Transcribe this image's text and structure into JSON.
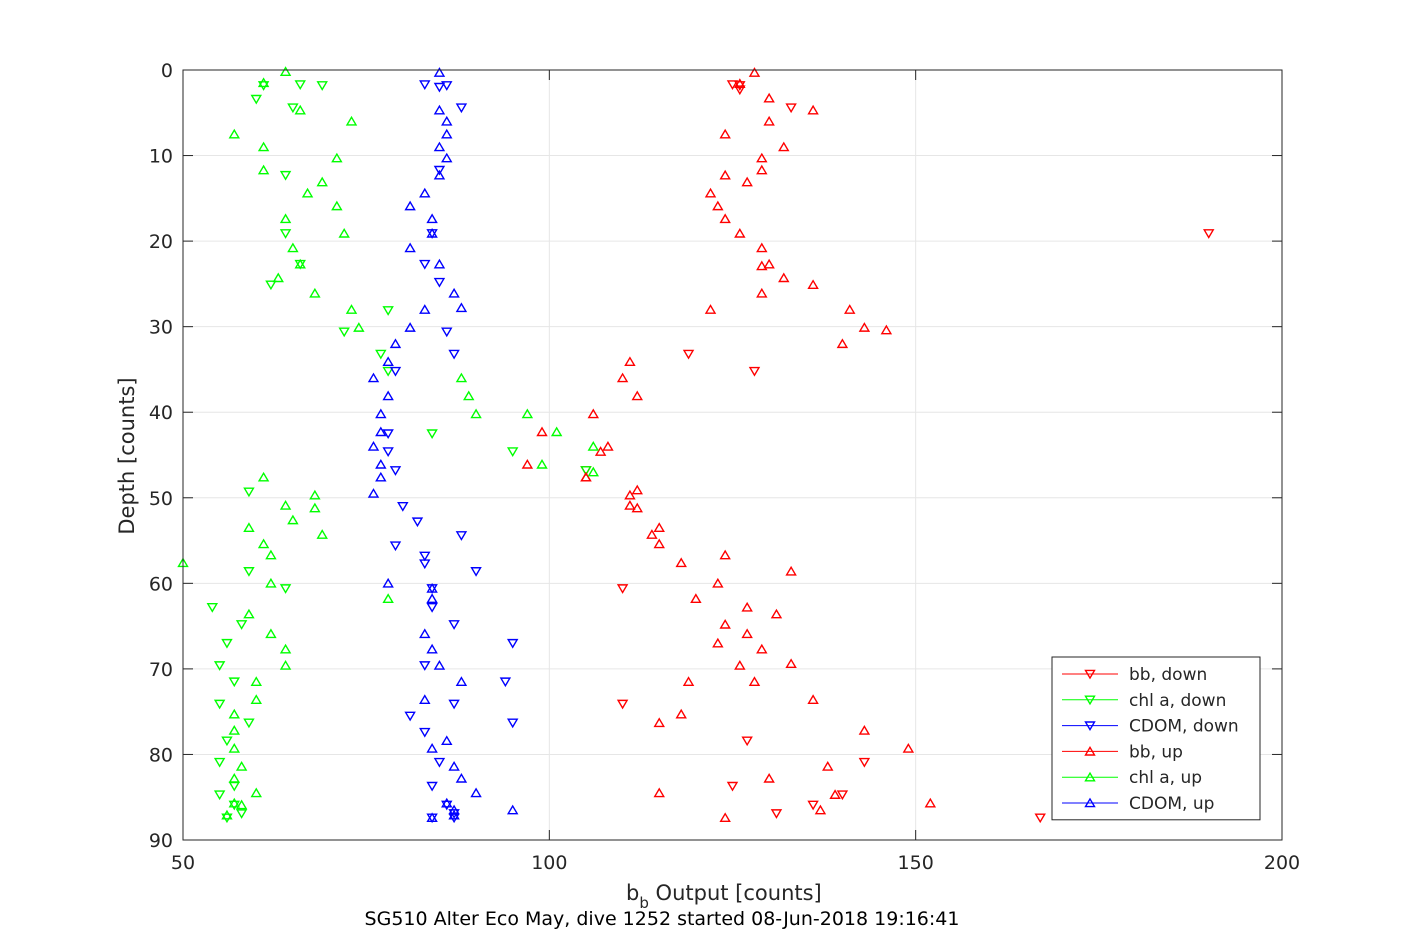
{
  "chart_data": {
    "type": "scatter",
    "xlabel_main": "b",
    "xlabel_sub": "b",
    "xlabel_rest": " Output [counts]",
    "ylabel": "Depth [counts]",
    "footer": "SG510 Alter Eco May, dive 1252 started 08-Jun-2018 19:16:41",
    "xlim": [
      50,
      200
    ],
    "ylim": [
      0,
      90
    ],
    "y_reversed": true,
    "grid": true,
    "legend_position": "bottom-right",
    "xticks": [
      50,
      100,
      150,
      200
    ],
    "yticks": [
      0,
      10,
      20,
      30,
      40,
      50,
      60,
      70,
      80,
      90
    ],
    "series": [
      {
        "name": "bb, down",
        "color": "#ff0000",
        "marker": "down",
        "points": [
          [
            125,
            1.7
          ],
          [
            126,
            1.8
          ],
          [
            126,
            2.3
          ],
          [
            133,
            4.4
          ],
          [
            128,
            35.2
          ],
          [
            119,
            33.2
          ],
          [
            190,
            19.1
          ],
          [
            105,
            46.8
          ],
          [
            110,
            60.6
          ],
          [
            110,
            74.1
          ],
          [
            127,
            78.4
          ],
          [
            125,
            83.7
          ],
          [
            131,
            86.9
          ],
          [
            136,
            85.9
          ],
          [
            167,
            87.4
          ],
          [
            140,
            84.7
          ],
          [
            143,
            80.9
          ]
        ]
      },
      {
        "name": "chl a, down",
        "color": "#00ff00",
        "marker": "down",
        "points": [
          [
            61,
            1.8
          ],
          [
            66,
            1.7
          ],
          [
            69,
            1.8
          ],
          [
            60,
            3.4
          ],
          [
            65,
            4.4
          ],
          [
            64,
            12.3
          ],
          [
            64,
            19.1
          ],
          [
            66,
            22.7
          ],
          [
            62,
            25.1
          ],
          [
            72,
            30.6
          ],
          [
            77,
            33.2
          ],
          [
            78,
            35.2
          ],
          [
            78,
            28.1
          ],
          [
            84,
            42.5
          ],
          [
            95,
            44.6
          ],
          [
            105,
            46.8
          ],
          [
            59,
            49.3
          ],
          [
            59,
            58.6
          ],
          [
            64,
            60.6
          ],
          [
            54,
            62.8
          ],
          [
            58,
            64.8
          ],
          [
            56,
            67.0
          ],
          [
            55,
            69.6
          ],
          [
            57,
            71.5
          ],
          [
            55,
            74.1
          ],
          [
            59,
            76.3
          ],
          [
            56,
            78.4
          ],
          [
            55,
            80.9
          ],
          [
            57,
            83.7
          ],
          [
            55,
            84.7
          ],
          [
            57,
            85.9
          ],
          [
            58,
            86.9
          ],
          [
            56,
            87.4
          ]
        ]
      },
      {
        "name": "CDOM, down",
        "color": "#0000ff",
        "marker": "down",
        "points": [
          [
            83,
            1.7
          ],
          [
            85,
            2.0
          ],
          [
            86,
            1.8
          ],
          [
            88,
            4.4
          ],
          [
            85,
            11.7
          ],
          [
            84,
            19.1
          ],
          [
            83,
            22.7
          ],
          [
            85,
            24.8
          ],
          [
            86,
            30.6
          ],
          [
            87,
            33.2
          ],
          [
            79,
            35.2
          ],
          [
            78,
            42.5
          ],
          [
            78,
            44.6
          ],
          [
            79,
            46.8
          ],
          [
            80,
            51.0
          ],
          [
            82,
            52.8
          ],
          [
            88,
            54.4
          ],
          [
            79,
            55.6
          ],
          [
            83,
            56.8
          ],
          [
            83,
            57.7
          ],
          [
            90,
            58.6
          ],
          [
            84,
            60.6
          ],
          [
            84,
            62.8
          ],
          [
            87,
            64.8
          ],
          [
            95,
            67.0
          ],
          [
            83,
            69.6
          ],
          [
            94,
            71.5
          ],
          [
            87,
            74.1
          ],
          [
            95,
            76.3
          ],
          [
            81,
            75.5
          ],
          [
            83,
            77.4
          ],
          [
            85,
            80.9
          ],
          [
            84,
            83.7
          ],
          [
            86,
            85.9
          ],
          [
            87,
            86.9
          ],
          [
            87,
            87.4
          ],
          [
            84,
            87.4
          ]
        ]
      },
      {
        "name": "bb, up",
        "color": "#ff0000",
        "marker": "up",
        "points": [
          [
            128,
            0.3
          ],
          [
            126,
            1.6
          ],
          [
            130,
            3.3
          ],
          [
            136,
            4.7
          ],
          [
            130,
            6.0
          ],
          [
            124,
            7.5
          ],
          [
            132,
            9.0
          ],
          [
            129,
            10.3
          ],
          [
            129,
            11.7
          ],
          [
            124,
            12.3
          ],
          [
            127,
            13.1
          ],
          [
            122,
            14.4
          ],
          [
            123,
            15.9
          ],
          [
            124,
            17.4
          ],
          [
            126,
            19.1
          ],
          [
            129,
            20.8
          ],
          [
            130,
            22.7
          ],
          [
            129,
            22.9
          ],
          [
            132,
            24.3
          ],
          [
            129,
            26.1
          ],
          [
            136,
            25.1
          ],
          [
            141,
            28.0
          ],
          [
            122,
            28.0
          ],
          [
            143,
            30.1
          ],
          [
            146,
            30.4
          ],
          [
            140,
            32.0
          ],
          [
            111,
            34.1
          ],
          [
            110,
            36.0
          ],
          [
            112,
            38.1
          ],
          [
            106,
            40.2
          ],
          [
            99,
            42.3
          ],
          [
            97,
            46.1
          ],
          [
            105,
            47.6
          ],
          [
            112,
            49.1
          ],
          [
            111,
            49.7
          ],
          [
            112,
            51.2
          ],
          [
            111,
            50.9
          ],
          [
            115,
            53.5
          ],
          [
            114,
            54.3
          ],
          [
            115,
            55.4
          ],
          [
            118,
            57.6
          ],
          [
            124,
            56.7
          ],
          [
            133,
            58.6
          ],
          [
            123,
            60.0
          ],
          [
            120,
            61.8
          ],
          [
            127,
            62.8
          ],
          [
            131,
            63.6
          ],
          [
            124,
            64.8
          ],
          [
            127,
            65.9
          ],
          [
            129,
            67.7
          ],
          [
            123,
            67.0
          ],
          [
            126,
            69.6
          ],
          [
            133,
            69.4
          ],
          [
            128,
            71.5
          ],
          [
            119,
            71.5
          ],
          [
            136,
            73.6
          ],
          [
            115,
            76.3
          ],
          [
            118,
            75.3
          ],
          [
            143,
            77.2
          ],
          [
            149,
            79.3
          ],
          [
            138,
            81.4
          ],
          [
            130,
            82.8
          ],
          [
            139,
            84.7
          ],
          [
            152,
            85.7
          ],
          [
            137,
            86.5
          ],
          [
            124,
            87.4
          ],
          [
            115,
            84.5
          ],
          [
            105,
            47.6
          ],
          [
            108,
            44.0
          ],
          [
            107,
            44.6
          ]
        ]
      },
      {
        "name": "chl a, up",
        "color": "#00ff00",
        "marker": "up",
        "points": [
          [
            64,
            0.2
          ],
          [
            61,
            1.5
          ],
          [
            66,
            4.7
          ],
          [
            73,
            6.0
          ],
          [
            57,
            7.5
          ],
          [
            61,
            9.0
          ],
          [
            71,
            10.3
          ],
          [
            61,
            11.7
          ],
          [
            69,
            13.1
          ],
          [
            67,
            14.4
          ],
          [
            71,
            15.9
          ],
          [
            64,
            17.4
          ],
          [
            72,
            19.1
          ],
          [
            65,
            20.8
          ],
          [
            66,
            22.7
          ],
          [
            63,
            24.3
          ],
          [
            68,
            26.1
          ],
          [
            73,
            28.0
          ],
          [
            74,
            30.1
          ],
          [
            88,
            36.0
          ],
          [
            89,
            38.1
          ],
          [
            90,
            40.2
          ],
          [
            97,
            40.2
          ],
          [
            101,
            42.3
          ],
          [
            106,
            44.0
          ],
          [
            99,
            46.1
          ],
          [
            106,
            47.0
          ],
          [
            61,
            47.6
          ],
          [
            68,
            49.7
          ],
          [
            64,
            50.9
          ],
          [
            68,
            51.2
          ],
          [
            65,
            52.6
          ],
          [
            59,
            53.5
          ],
          [
            69,
            54.3
          ],
          [
            61,
            55.4
          ],
          [
            62,
            56.7
          ],
          [
            50,
            57.6
          ],
          [
            62,
            60.0
          ],
          [
            78,
            61.8
          ],
          [
            59,
            63.6
          ],
          [
            62,
            65.9
          ],
          [
            64,
            67.7
          ],
          [
            64,
            69.6
          ],
          [
            60,
            71.5
          ],
          [
            60,
            73.6
          ],
          [
            57,
            75.3
          ],
          [
            57,
            77.2
          ],
          [
            57,
            79.3
          ],
          [
            58,
            81.4
          ],
          [
            57,
            82.8
          ],
          [
            60,
            84.5
          ],
          [
            57,
            85.7
          ],
          [
            58,
            85.9
          ],
          [
            56,
            87.1
          ]
        ]
      },
      {
        "name": "CDOM, up",
        "color": "#0000ff",
        "marker": "up",
        "points": [
          [
            85,
            0.3
          ],
          [
            85,
            4.7
          ],
          [
            86,
            6.0
          ],
          [
            86,
            7.5
          ],
          [
            85,
            9.0
          ],
          [
            86,
            10.3
          ],
          [
            85,
            12.3
          ],
          [
            83,
            14.4
          ],
          [
            81,
            15.9
          ],
          [
            84,
            17.4
          ],
          [
            84,
            19.1
          ],
          [
            81,
            20.8
          ],
          [
            85,
            22.7
          ],
          [
            87,
            26.1
          ],
          [
            88,
            27.8
          ],
          [
            83,
            28.0
          ],
          [
            81,
            30.1
          ],
          [
            79,
            32.0
          ],
          [
            78,
            34.1
          ],
          [
            76,
            36.0
          ],
          [
            78,
            38.1
          ],
          [
            77,
            40.2
          ],
          [
            77,
            42.3
          ],
          [
            76,
            44.0
          ],
          [
            77,
            46.1
          ],
          [
            76,
            49.5
          ],
          [
            77,
            47.6
          ],
          [
            78,
            60.0
          ],
          [
            84,
            60.6
          ],
          [
            84,
            61.8
          ],
          [
            83,
            65.9
          ],
          [
            84,
            67.7
          ],
          [
            85,
            69.6
          ],
          [
            88,
            71.5
          ],
          [
            83,
            73.6
          ],
          [
            84,
            79.3
          ],
          [
            86,
            78.4
          ],
          [
            87,
            81.4
          ],
          [
            88,
            82.8
          ],
          [
            90,
            84.5
          ],
          [
            86,
            85.7
          ],
          [
            87,
            86.5
          ],
          [
            95,
            86.5
          ],
          [
            84,
            87.4
          ],
          [
            87,
            87.1
          ]
        ]
      }
    ]
  }
}
